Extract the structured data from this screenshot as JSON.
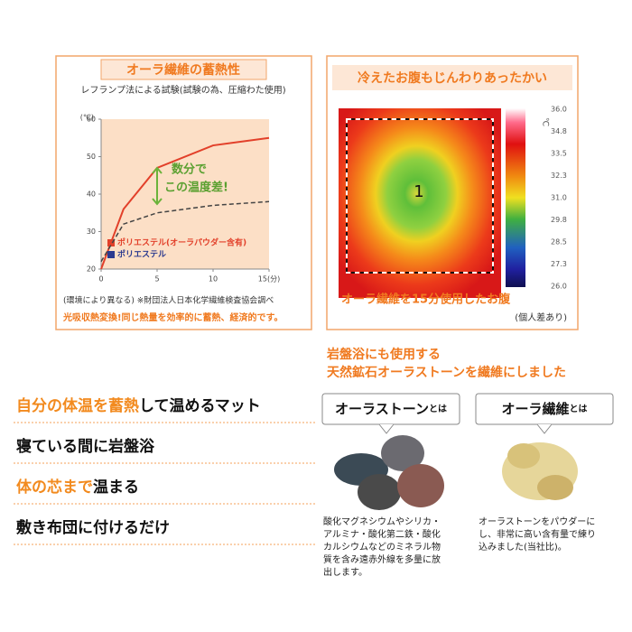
{
  "left_panel": {
    "title": "オーラ繊維の蓄熱性",
    "subtitle": "レフランプ法による試験(試験の為、圧縮わた使用)",
    "note": "(環境により異なる) ※財団法人日本化学繊維検査協会調べ",
    "tagline": "光吸収熱変換!同じ熱量を効率的に蓄熱、経済的です。"
  },
  "chart_data": {
    "type": "line",
    "ylabel": "(℃)",
    "x": [
      0,
      2,
      5,
      10,
      15
    ],
    "series": [
      {
        "name": "ポリエステル(オーラパウダー含有)",
        "color": "#e2402a",
        "values": [
          20,
          36,
          47,
          53,
          55
        ]
      },
      {
        "name": "ポリエステル",
        "color": "#2b3a8f",
        "values": [
          22,
          32,
          35,
          37,
          38
        ]
      }
    ],
    "xlim": [
      0,
      15
    ],
    "xticks": [
      0,
      5,
      10,
      {
        "value": 15,
        "label": "15(分)"
      }
    ],
    "ylim": [
      20,
      60
    ],
    "yticks": [
      20,
      30,
      40,
      50,
      60
    ],
    "annotations": [
      "数分で",
      "この温度差!"
    ]
  },
  "right_panel": {
    "title": "冷えたお腹もじんわりあったかい",
    "marker": "1",
    "scale_unit": "℃",
    "scale_labels": [
      "36.0",
      "34.8",
      "33.5",
      "32.3",
      "31.0",
      "29.8",
      "28.5",
      "27.3",
      "26.0"
    ],
    "caption": "オーラ繊維を15分使用したお腹",
    "caption_note": "(個人差あり)"
  },
  "features": [
    {
      "orange": "自分の体温を蓄熱",
      "black": "して温めるマット"
    },
    {
      "black": "寝ている間に岩盤浴"
    },
    {
      "orange": "体の芯まで",
      "black": "温まる"
    },
    {
      "black": "敷き布団に付けるだけ"
    }
  ],
  "material": {
    "heading": [
      "岩盤浴にも使用する",
      "天然鉱石オーラストーンを繊維にしました"
    ],
    "stone": {
      "label": "オーラストーン",
      "suffix": "とは",
      "description": [
        "酸化マグネシウムやシリカ・",
        "アルミナ・酸化第二鉄・酸化",
        "カルシウムなどのミネラル物",
        "質を含み遠赤外線を多量に放",
        "出します。"
      ]
    },
    "fiber": {
      "label": "オーラ繊維",
      "suffix": "とは",
      "description": [
        "オーラストーンをパウダーに",
        "し、非常に高い含有量で練り",
        "込みました(当社比)。"
      ]
    }
  }
}
